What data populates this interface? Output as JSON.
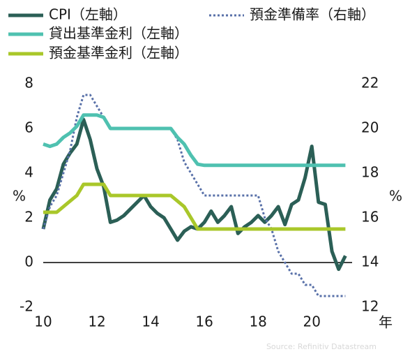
{
  "chart_data": {
    "type": "line",
    "x": [
      2010,
      2010.25,
      2010.5,
      2010.75,
      2011,
      2011.25,
      2011.5,
      2011.75,
      2012,
      2012.25,
      2012.5,
      2012.75,
      2013,
      2013.25,
      2013.5,
      2013.75,
      2014,
      2014.25,
      2014.5,
      2014.75,
      2015,
      2015.25,
      2015.5,
      2015.75,
      2016,
      2016.25,
      2016.5,
      2016.75,
      2017,
      2017.25,
      2017.5,
      2017.75,
      2018,
      2018.25,
      2018.5,
      2018.75,
      2019,
      2019.25,
      2019.5,
      2019.75,
      2020,
      2020.25,
      2020.5,
      2020.75,
      2021,
      2021.25
    ],
    "series": [
      {
        "name": "CPI（左軸）",
        "color": "#2b5f56",
        "style": "solid",
        "axis": "y",
        "values": [
          1.5,
          2.8,
          3.3,
          4.4,
          4.9,
          5.3,
          6.4,
          5.5,
          4.2,
          3.4,
          1.8,
          1.9,
          2.1,
          2.4,
          2.7,
          3.0,
          2.5,
          2.2,
          2.0,
          1.5,
          1.0,
          1.4,
          1.6,
          1.5,
          1.8,
          2.3,
          1.8,
          2.1,
          2.5,
          1.3,
          1.6,
          1.8,
          2.1,
          1.8,
          2.1,
          2.5,
          1.7,
          2.6,
          2.8,
          3.8,
          5.2,
          2.7,
          2.6,
          0.5,
          -0.3,
          0.3
        ]
      },
      {
        "name": "預金準備率（右軸）",
        "color": "#5870a8",
        "style": "dotted",
        "axis": "y2",
        "values": [
          15.5,
          16.5,
          17,
          18,
          19,
          20.5,
          21.5,
          21.5,
          21,
          20.5,
          20,
          20,
          20,
          20,
          20,
          20,
          20,
          20,
          20,
          20,
          19.5,
          18.5,
          18,
          17.5,
          17,
          17,
          17,
          17,
          17,
          17,
          17,
          17,
          17,
          16,
          15.5,
          14.5,
          14,
          13.5,
          13.5,
          13,
          13,
          12.5,
          12.5,
          12.5,
          12.5,
          12.5
        ]
      },
      {
        "name": "貸出基準金利（左軸）",
        "color": "#4fc1b0",
        "style": "solid",
        "axis": "y",
        "values": [
          5.3,
          5.2,
          5.3,
          5.6,
          5.8,
          6.1,
          6.6,
          6.6,
          6.6,
          6.5,
          6.0,
          6.0,
          6.0,
          6.0,
          6.0,
          6.0,
          6.0,
          6.0,
          6.0,
          6.0,
          5.6,
          5.3,
          4.8,
          4.4,
          4.35,
          4.35,
          4.35,
          4.35,
          4.35,
          4.35,
          4.35,
          4.35,
          4.35,
          4.35,
          4.35,
          4.35,
          4.35,
          4.35,
          4.35,
          4.35,
          4.35,
          4.35,
          4.35,
          4.35,
          4.35,
          4.35
        ]
      },
      {
        "name": "預金基準金利（左軸）",
        "color": "#a9c72a",
        "style": "solid",
        "axis": "y",
        "values": [
          2.25,
          2.25,
          2.25,
          2.5,
          2.75,
          3.0,
          3.5,
          3.5,
          3.5,
          3.5,
          3.0,
          3.0,
          3.0,
          3.0,
          3.0,
          3.0,
          3.0,
          3.0,
          3.0,
          3.0,
          2.75,
          2.5,
          2.0,
          1.5,
          1.5,
          1.5,
          1.5,
          1.5,
          1.5,
          1.5,
          1.5,
          1.5,
          1.5,
          1.5,
          1.5,
          1.5,
          1.5,
          1.5,
          1.5,
          1.5,
          1.5,
          1.5,
          1.5,
          1.5,
          1.5,
          1.5
        ]
      }
    ],
    "xlim": [
      2010,
      2021.5
    ],
    "xticks": [
      {
        "value": 2010,
        "label": "10"
      },
      {
        "value": 2012,
        "label": "12"
      },
      {
        "value": 2014,
        "label": "14"
      },
      {
        "value": 2016,
        "label": "16"
      },
      {
        "value": 2018,
        "label": "18"
      },
      {
        "value": 2020,
        "label": "20"
      }
    ],
    "ylim": [
      -2,
      8
    ],
    "yticks": [
      -2,
      0,
      2,
      4,
      6,
      8
    ],
    "y2lim": [
      12,
      22
    ],
    "y2ticks": [
      12,
      14,
      16,
      18,
      20,
      22
    ],
    "y_label": "%",
    "y2_label": "%",
    "x_label": "年",
    "source": "Source: Refinitiv Datastream"
  }
}
